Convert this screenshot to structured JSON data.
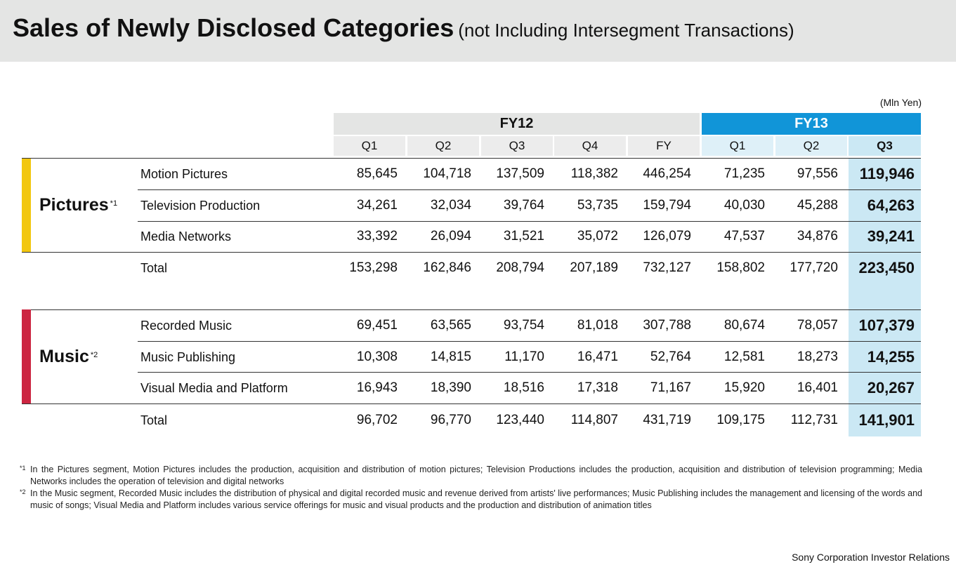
{
  "title": {
    "main": "Sales of Newly Disclosed Categories",
    "sub": "(not Including Intersegment Transactions)"
  },
  "unit": "(Mln Yen)",
  "headers": {
    "fy12": "FY12",
    "fy13": "FY13",
    "quarters": [
      "Q1",
      "Q2",
      "Q3",
      "Q4",
      "FY",
      "Q1",
      "Q2",
      "Q3"
    ]
  },
  "segments": [
    {
      "name": "Pictures",
      "note": "*1",
      "color": "#f2c710",
      "rows": [
        {
          "label": "Motion Pictures",
          "values": [
            "85,645",
            "104,718",
            "137,509",
            "118,382",
            "446,254",
            "71,235",
            "97,556",
            "119,946"
          ]
        },
        {
          "label": "Television Production",
          "values": [
            "34,261",
            "32,034",
            "39,764",
            "53,735",
            "159,794",
            "40,030",
            "45,288",
            "64,263"
          ]
        },
        {
          "label": "Media Networks",
          "values": [
            "33,392",
            "26,094",
            "31,521",
            "35,072",
            "126,079",
            "47,537",
            "34,876",
            "39,241"
          ]
        },
        {
          "label": "Total",
          "values": [
            "153,298",
            "162,846",
            "208,794",
            "207,189",
            "732,127",
            "158,802",
            "177,720",
            "223,450"
          ]
        }
      ]
    },
    {
      "name": "Music",
      "note": "*2",
      "color": "#cc2541",
      "rows": [
        {
          "label": "Recorded Music",
          "values": [
            "69,451",
            "63,565",
            "93,754",
            "81,018",
            "307,788",
            "80,674",
            "78,057",
            "107,379"
          ]
        },
        {
          "label": "Music Publishing",
          "values": [
            "10,308",
            "14,815",
            "11,170",
            "16,471",
            "52,764",
            "12,581",
            "18,273",
            "14,255"
          ]
        },
        {
          "label": "Visual Media and Platform",
          "values": [
            "16,943",
            "18,390",
            "18,516",
            "17,318",
            "71,167",
            "15,920",
            "16,401",
            "20,267"
          ]
        },
        {
          "label": "Total",
          "values": [
            "96,702",
            "96,770",
            "123,440",
            "114,807",
            "431,719",
            "109,175",
            "112,731",
            "141,901"
          ]
        }
      ]
    }
  ],
  "footnotes": [
    {
      "mark": "*1",
      "text": "In the Pictures segment, Motion Pictures includes the production, acquisition and distribution of motion pictures; Television Productions includes the production, acquisition and distribution of television programming; Media Networks includes the operation of television and digital networks"
    },
    {
      "mark": "*2",
      "text": "In the Music segment, Recorded Music includes the distribution of physical and digital recorded music and revenue derived from artists' live performances; Music Publishing includes the management and licensing of the words and music of songs; Visual Media and Platform includes various service offerings for music and visual products and the production and distribution of animation titles"
    }
  ],
  "footer": "Sony Corporation  Investor Relations",
  "colors": {
    "fy13_header": "#1195d8",
    "highlight_column": "#cbe8f4",
    "header_grey": "#e4e5e4"
  }
}
